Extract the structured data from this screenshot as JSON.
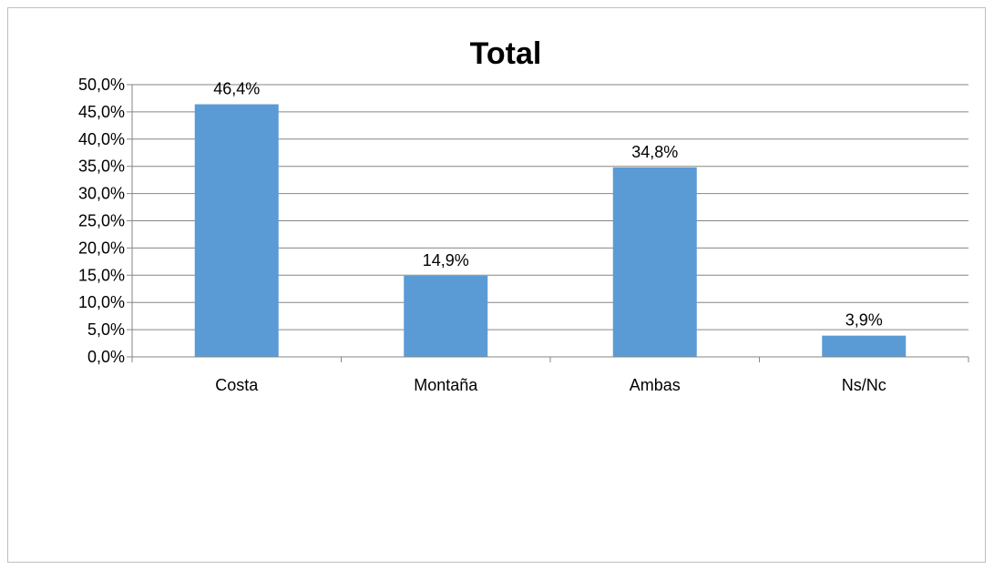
{
  "chart_data": {
    "type": "bar",
    "title": "Total",
    "categories": [
      "Costa",
      "Montaña",
      "Ambas",
      "Ns/Nc"
    ],
    "values": [
      46.4,
      14.9,
      34.8,
      3.9
    ],
    "data_labels": [
      "46,4%",
      "14,9%",
      "34,8%",
      "3,9%"
    ],
    "ylim": [
      0,
      50
    ],
    "ytick_values": [
      0,
      5,
      10,
      15,
      20,
      25,
      30,
      35,
      40,
      45,
      50
    ],
    "ytick_labels": [
      "0,0%",
      "5,0%",
      "10,0%",
      "15,0%",
      "20,0%",
      "25,0%",
      "30,0%",
      "35,0%",
      "40,0%",
      "45,0%",
      "50,0%"
    ],
    "xlabel": "",
    "ylabel": "",
    "grid": true,
    "legend": "none",
    "bar_color": "#5b9bd5",
    "grid_color": "#868686"
  }
}
